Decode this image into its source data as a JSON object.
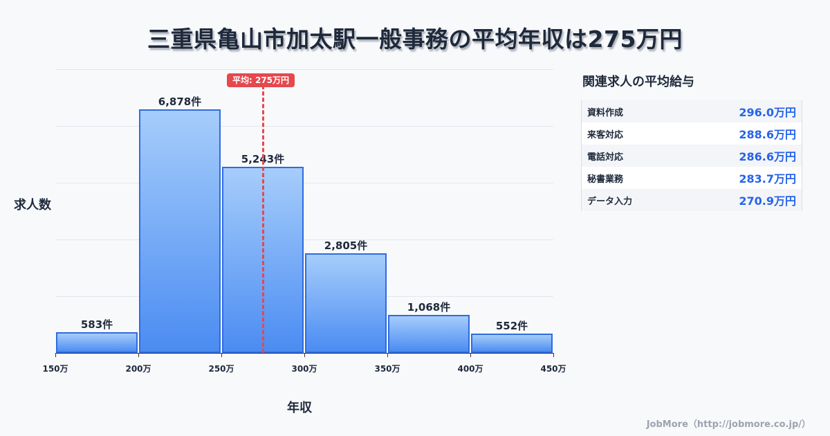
{
  "title": "三重県亀山市加太駅一般事務の平均年収は275万円",
  "chart_data": {
    "type": "bar",
    "title": "三重県亀山市加太駅一般事務の平均年収は275万円",
    "xlabel": "年収",
    "ylabel": "求人数",
    "categories": [
      "150万-200万",
      "200万-250万",
      "250万-300万",
      "300万-350万",
      "350万-400万",
      "400万-450万"
    ],
    "x_ticks": [
      "150万",
      "200万",
      "250万",
      "300万",
      "350万",
      "400万",
      "450万"
    ],
    "values": [
      583,
      6878,
      5243,
      2805,
      1068,
      552
    ],
    "value_labels": [
      "583件",
      "6,878件",
      "5,243件",
      "2,805件",
      "1,068件",
      "552件"
    ],
    "ylim": [
      0,
      8000
    ],
    "grid": true,
    "annotations": [
      {
        "type": "vline",
        "x": 275,
        "label": "平均: 275万円",
        "color": "#e5484d"
      }
    ],
    "bar_color": "#4b8cf2",
    "bar_edge_color": "#2f6be0"
  },
  "sidebar": {
    "title": "関連求人の平均給与",
    "rows": [
      {
        "name": "資料作成",
        "value": "296.0万円"
      },
      {
        "name": "来客対応",
        "value": "288.6万円"
      },
      {
        "name": "電話対応",
        "value": "286.6万円"
      },
      {
        "name": "秘書業務",
        "value": "283.7万円"
      },
      {
        "name": "データ入力",
        "value": "270.9万円"
      }
    ]
  },
  "footer": "JobMore（http://jobmore.co.jp/）"
}
